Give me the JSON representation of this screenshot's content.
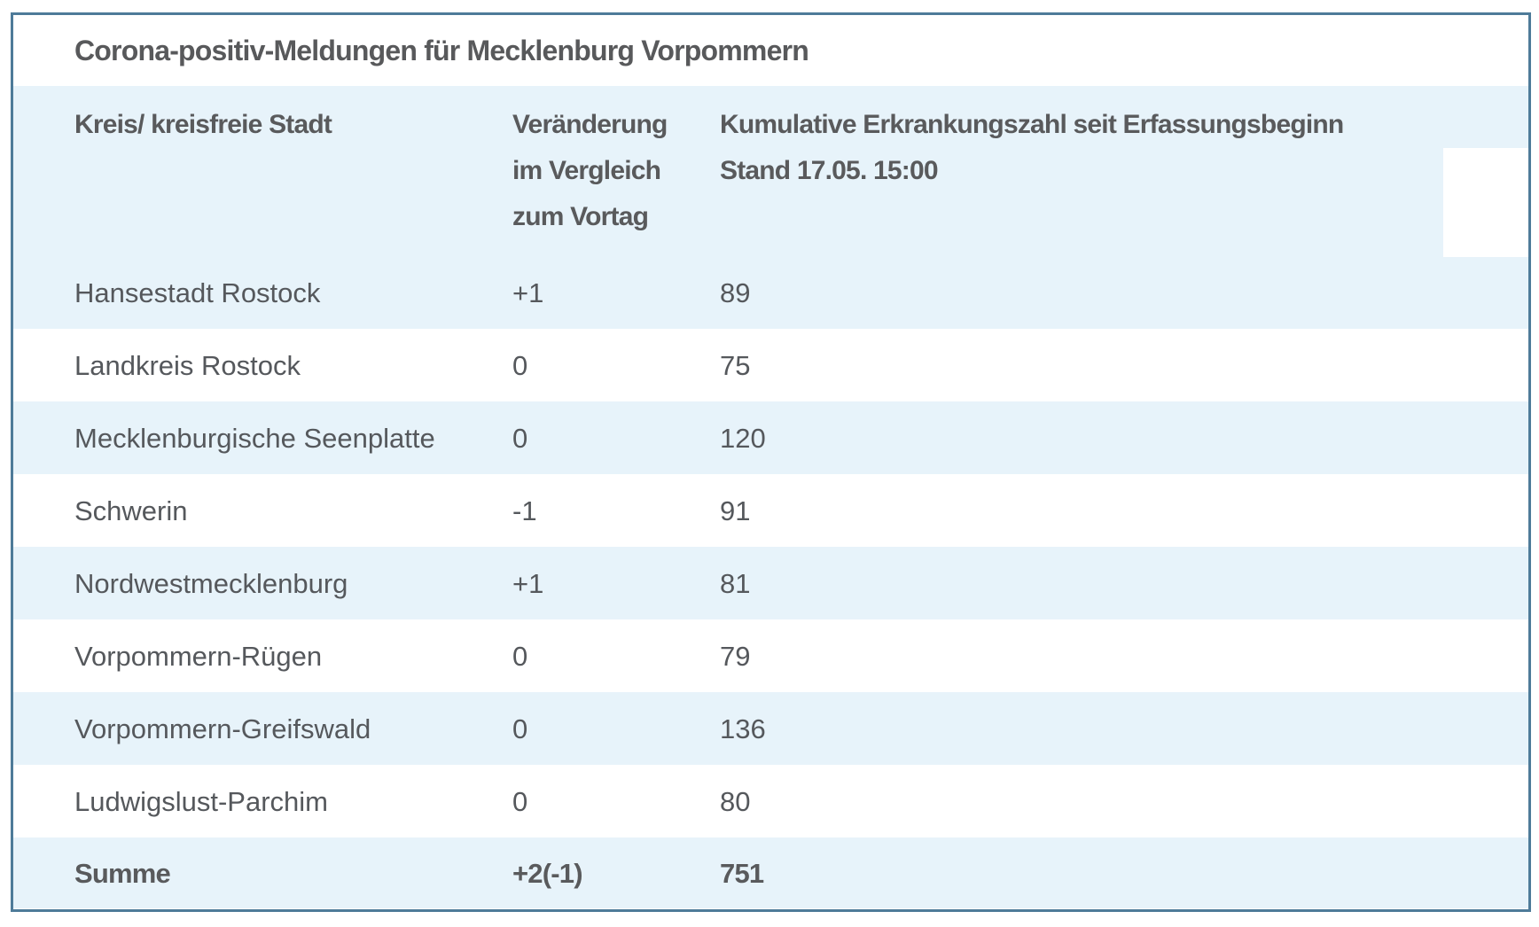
{
  "chart_data": {
    "type": "table",
    "title": "Corona-positiv-Meldungen für Mecklenburg Vorpommern",
    "header": {
      "region": "Kreis/ kreisfreie Stadt",
      "change_lines": [
        "Veränderung",
        "im Vergleich",
        "zum Vortag"
      ],
      "cumulative_lines": [
        "Kumulative Erkrankungszahl seit Erfassungsbeginn",
        "Stand 17.05. 15:00"
      ]
    },
    "rows": [
      {
        "region": "Hansestadt Rostock",
        "change": "+1",
        "cumulative": "89"
      },
      {
        "region": "Landkreis Rostock",
        "change": "0",
        "cumulative": "75"
      },
      {
        "region": "Mecklenburgische Seenplatte",
        "change": "0",
        "cumulative": "120"
      },
      {
        "region": "Schwerin",
        "change": "-1",
        "cumulative": "91"
      },
      {
        "region": "Nordwestmecklenburg",
        "change": "+1",
        "cumulative": "81"
      },
      {
        "region": "Vorpommern-Rügen",
        "change": "0",
        "cumulative": "79"
      },
      {
        "region": "Vorpommern-Greifswald",
        "change": "0",
        "cumulative": "136"
      },
      {
        "region": "Ludwigslust-Parchim",
        "change": "0",
        "cumulative": "80"
      }
    ],
    "summary": {
      "region": "Summe",
      "change": "+2(-1)",
      "cumulative": "751"
    },
    "numeric": {
      "change_values": [
        1,
        0,
        0,
        -1,
        1,
        0,
        0,
        0
      ],
      "cumulative_values": [
        89,
        75,
        120,
        91,
        81,
        79,
        136,
        80
      ],
      "total_cumulative": 751
    },
    "layout": {
      "striped_rows": true,
      "stripe_pattern": "header and odd data rows light blue, others white",
      "header_position": "top"
    }
  },
  "colors": {
    "border": "#4e7b99",
    "stripe_blue": "#e7f3fa",
    "heading_text": "#595a5c",
    "body_text": "#55585c",
    "background": "#ffffff"
  }
}
